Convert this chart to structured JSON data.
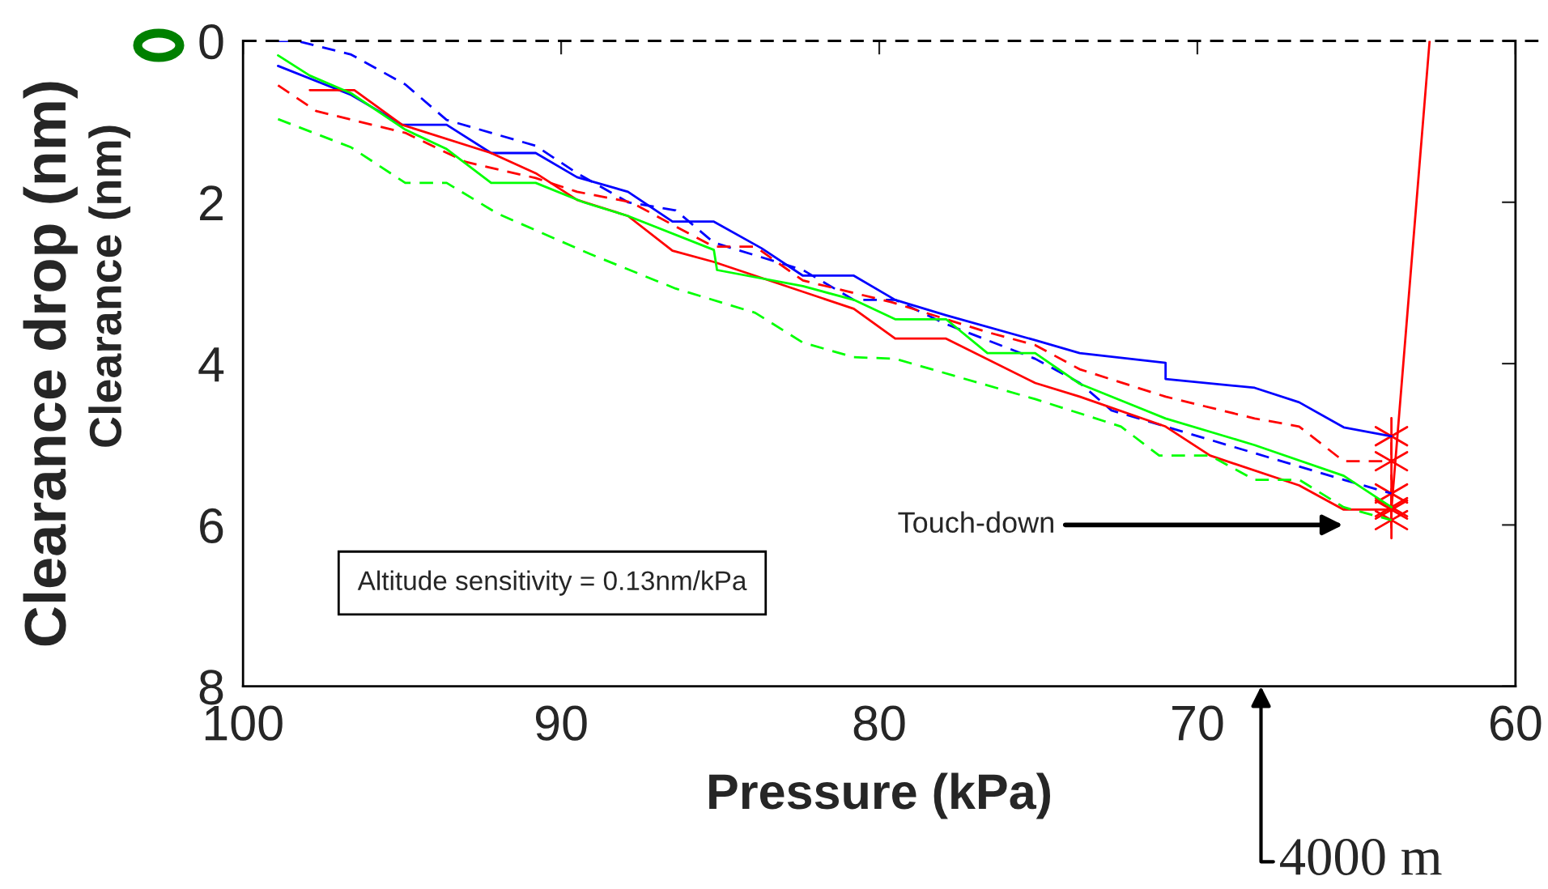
{
  "chart_data": {
    "type": "line",
    "xlabel": "Pressure (kPa)",
    "ylabel": "Clearance drop (nm)",
    "xlim": [
      100,
      60
    ],
    "xticks": [
      100,
      90,
      80,
      70,
      60
    ],
    "ylim": [
      8,
      0
    ],
    "yticks": [
      0,
      2,
      4,
      6,
      8
    ],
    "grid": false,
    "legend": false,
    "series": [
      {
        "color": "#0000ff",
        "line_style": "solid",
        "x": [
          98.9,
          96.6,
          95.0,
          93.6,
          92.2,
          90.8,
          89.5,
          87.9,
          86.5,
          85.2,
          83.7,
          82.4,
          80.8,
          79.5,
          77.9,
          75.1,
          73.7,
          71.0,
          71.0,
          68.2,
          66.8,
          65.4,
          63.9
        ],
        "values": [
          0.31,
          0.67,
          1.04,
          1.04,
          1.39,
          1.39,
          1.69,
          1.87,
          2.24,
          2.24,
          2.57,
          2.91,
          2.91,
          3.21,
          3.4,
          3.71,
          3.87,
          3.99,
          4.19,
          4.3,
          4.48,
          4.79,
          4.9
        ]
      },
      {
        "color": "#0000ff",
        "line_style": "dashed",
        "x": [
          98.9,
          98.3,
          96.6,
          94.9,
          93.6,
          92.2,
          90.8,
          89.5,
          87.9,
          86.4,
          85.2,
          82.4,
          80.8,
          79.5,
          77.9,
          75.1,
          73.7,
          72.7,
          71.0,
          68.2,
          65.4,
          63.9
        ],
        "values": [
          0.0,
          0.0,
          0.17,
          0.54,
          0.98,
          1.14,
          1.3,
          1.64,
          2.0,
          2.1,
          2.5,
          2.84,
          3.21,
          3.21,
          3.51,
          3.94,
          4.24,
          4.58,
          4.78,
          5.11,
          5.44,
          5.61
        ]
      },
      {
        "color": "#ff0000",
        "line_style": "solid",
        "x": [
          97.9,
          96.5,
          95.0,
          92.2,
          90.8,
          89.5,
          87.9,
          86.5,
          85.2,
          80.8,
          79.5,
          77.9,
          75.1,
          73.7,
          71.0,
          69.6,
          66.8,
          65.4,
          63.9,
          62.7
        ],
        "values": [
          0.61,
          0.61,
          1.04,
          1.39,
          1.64,
          1.97,
          2.17,
          2.6,
          2.74,
          3.32,
          3.69,
          3.69,
          4.24,
          4.41,
          4.78,
          5.14,
          5.51,
          5.81,
          5.81,
          0.0
        ]
      },
      {
        "color": "#ff0000",
        "line_style": "dashed",
        "x": [
          98.9,
          97.7,
          94.9,
          93.0,
          90.8,
          89.5,
          87.8,
          86.4,
          85.2,
          83.9,
          82.4,
          79.6,
          76.6,
          75.1,
          73.7,
          71.0,
          68.2,
          66.8,
          65.4,
          63.9
        ],
        "values": [
          0.55,
          0.87,
          1.14,
          1.5,
          1.7,
          1.87,
          2.0,
          2.3,
          2.55,
          2.55,
          2.97,
          3.24,
          3.61,
          3.77,
          4.07,
          4.41,
          4.68,
          4.78,
          5.21,
          5.21
        ]
      },
      {
        "color": "#00ff00",
        "line_style": "solid",
        "x": [
          98.9,
          97.9,
          96.6,
          94.9,
          93.6,
          92.2,
          90.8,
          89.3,
          87.9,
          85.2,
          85.1,
          82.4,
          80.8,
          79.5,
          77.9,
          76.6,
          75.1,
          73.7,
          71.0,
          68.2,
          65.4,
          63.9
        ],
        "values": [
          0.18,
          0.43,
          0.65,
          1.1,
          1.34,
          1.76,
          1.76,
          2.0,
          2.17,
          2.59,
          2.84,
          3.04,
          3.21,
          3.45,
          3.45,
          3.87,
          3.87,
          4.25,
          4.68,
          5.01,
          5.39,
          5.78
        ]
      },
      {
        "color": "#00ff00",
        "line_style": "dashed",
        "x": [
          98.9,
          96.6,
          94.9,
          93.6,
          92.0,
          89.1,
          86.4,
          83.9,
          82.4,
          80.8,
          79.5,
          75.1,
          72.4,
          71.2,
          69.6,
          68.2,
          66.8,
          65.4,
          63.9
        ],
        "values": [
          0.97,
          1.32,
          1.76,
          1.76,
          2.14,
          2.64,
          3.07,
          3.37,
          3.74,
          3.92,
          3.94,
          4.44,
          4.78,
          5.14,
          5.14,
          5.44,
          5.44,
          5.78,
          5.94
        ]
      },
      {
        "type": "scatter",
        "color": "#ff0000",
        "marker": "cross",
        "x": [
          63.9,
          63.9,
          63.9,
          63.9,
          63.9,
          63.9
        ],
        "values": [
          4.9,
          5.21,
          5.61,
          5.78,
          5.81,
          5.94
        ]
      }
    ],
    "ref_lines": [
      {
        "axis": "y",
        "value": 0,
        "color": "#000000",
        "line_style": "dashed"
      }
    ],
    "annotations": [
      "Clearance (nm)",
      "Altitude sensitivity = 0.13nm/kPa",
      "Touch-down",
      "4000 m"
    ]
  }
}
